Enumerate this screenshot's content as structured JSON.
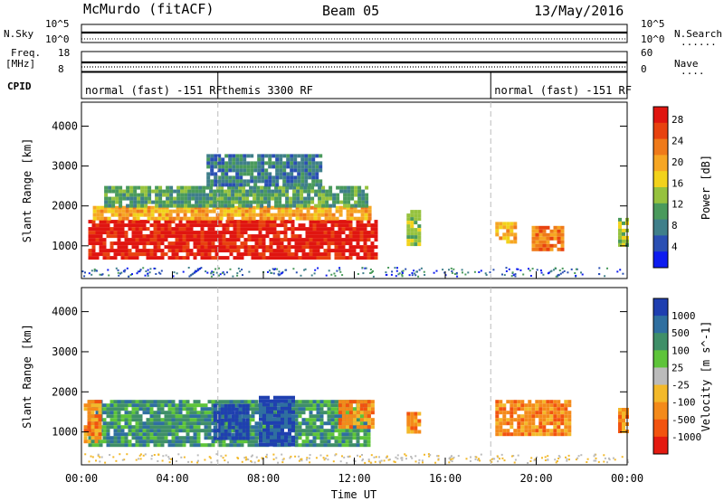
{
  "header": {
    "station": "McMurdo (fitACF)",
    "beam": "Beam 05",
    "date": "13/May/2016"
  },
  "noise_panel": {
    "left_label": "N.Sky",
    "right_label": "N.Search",
    "right_marker": "......",
    "left_ticks": [
      "10^5",
      "10^0"
    ],
    "right_ticks": [
      "10^5",
      "10^0"
    ]
  },
  "freq_panel": {
    "left_label_1": "Freq.",
    "left_label_2": "[MHz]",
    "right_label": "Nave",
    "right_marker": "....",
    "left_ticks": [
      "18",
      "8"
    ],
    "right_ticks": [
      "60",
      "0"
    ]
  },
  "cpid": {
    "label": "CPID",
    "segments": [
      {
        "text": "normal (fast) -151 RF",
        "start_h": 0,
        "end_h": 6
      },
      {
        "text": "themis 3300 RF",
        "start_h": 6,
        "end_h": 18
      },
      {
        "text": "normal (fast) -151 RF",
        "start_h": 18,
        "end_h": 24
      }
    ]
  },
  "time_axis": {
    "label": "Time UT",
    "ticks": [
      "00:00",
      "04:00",
      "08:00",
      "12:00",
      "16:00",
      "20:00",
      "00:00"
    ]
  },
  "chart_data": [
    {
      "type": "heatmap",
      "name": "power",
      "ylabel": "Slant Range [km]",
      "yticks": [
        1000,
        2000,
        3000,
        4000
      ],
      "ylim": [
        180,
        4600
      ],
      "xlim": [
        0,
        24
      ],
      "colorbar": {
        "label": "Power [dB]",
        "ticks": [
          "4",
          "8",
          "12",
          "16",
          "20",
          "24",
          "28"
        ],
        "colors": [
          "#0d1cf0",
          "#2a4fb3",
          "#3f7f8a",
          "#4a9a5c",
          "#96c23e",
          "#f2d21b",
          "#f6a623",
          "#ef7a1a",
          "#e8420f",
          "#e01510"
        ]
      },
      "regions": [
        {
          "t0": 0.3,
          "t1": 12.9,
          "r0": 700,
          "r1": 1650,
          "level": 9
        },
        {
          "t0": 0.5,
          "t1": 12.6,
          "r0": 1650,
          "r1": 2000,
          "level": 6
        },
        {
          "t0": 1.0,
          "t1": 12.5,
          "r0": 2000,
          "r1": 2500,
          "level": 3
        },
        {
          "t0": 5.5,
          "t1": 10.5,
          "r0": 2500,
          "r1": 3300,
          "level": 2
        },
        {
          "t0": 14.3,
          "t1": 14.8,
          "r0": 1000,
          "r1": 1900,
          "level": 4
        },
        {
          "t0": 18.2,
          "t1": 19.0,
          "r0": 1100,
          "r1": 1600,
          "level": 6
        },
        {
          "t0": 19.8,
          "t1": 21.2,
          "r0": 900,
          "r1": 1500,
          "level": 7
        },
        {
          "t0": 23.6,
          "t1": 24.0,
          "r0": 1000,
          "r1": 1700,
          "level": 4
        }
      ]
    },
    {
      "type": "heatmap",
      "name": "velocity",
      "ylabel": "Slant Range [km]",
      "yticks": [
        1000,
        2000,
        3000,
        4000
      ],
      "ylim": [
        180,
        4600
      ],
      "xlim": [
        0,
        24
      ],
      "colorbar": {
        "label": "Velocity [m s^-1]",
        "ticks": [
          "1000",
          "500",
          "100",
          "25",
          "-25",
          "-100",
          "-500",
          "-1000"
        ],
        "colors": [
          "#1f3fb0",
          "#2f6fa0",
          "#3f8f68",
          "#5ec43a",
          "#bbbbbb",
          "#f3b92a",
          "#f48a1a",
          "#f2530f",
          "#e41a10"
        ]
      },
      "regions": [
        {
          "t0": 0.3,
          "t1": 12.7,
          "r0": 700,
          "r1": 1800,
          "level": 2
        },
        {
          "t0": 5.8,
          "t1": 7.3,
          "r0": 800,
          "r1": 1700,
          "level": 0
        },
        {
          "t0": 7.8,
          "t1": 9.3,
          "r0": 700,
          "r1": 1900,
          "level": 0
        },
        {
          "t0": 0.1,
          "t1": 0.8,
          "r0": 800,
          "r1": 1800,
          "level": 6
        },
        {
          "t0": 11.3,
          "t1": 12.8,
          "r0": 1100,
          "r1": 1800,
          "level": 6
        },
        {
          "t0": 14.3,
          "t1": 14.8,
          "r0": 1000,
          "r1": 1500,
          "level": 6
        },
        {
          "t0": 18.2,
          "t1": 21.5,
          "r0": 900,
          "r1": 1800,
          "level": 6
        },
        {
          "t0": 23.6,
          "t1": 24.0,
          "r0": 1000,
          "r1": 1600,
          "level": 6
        }
      ]
    }
  ]
}
